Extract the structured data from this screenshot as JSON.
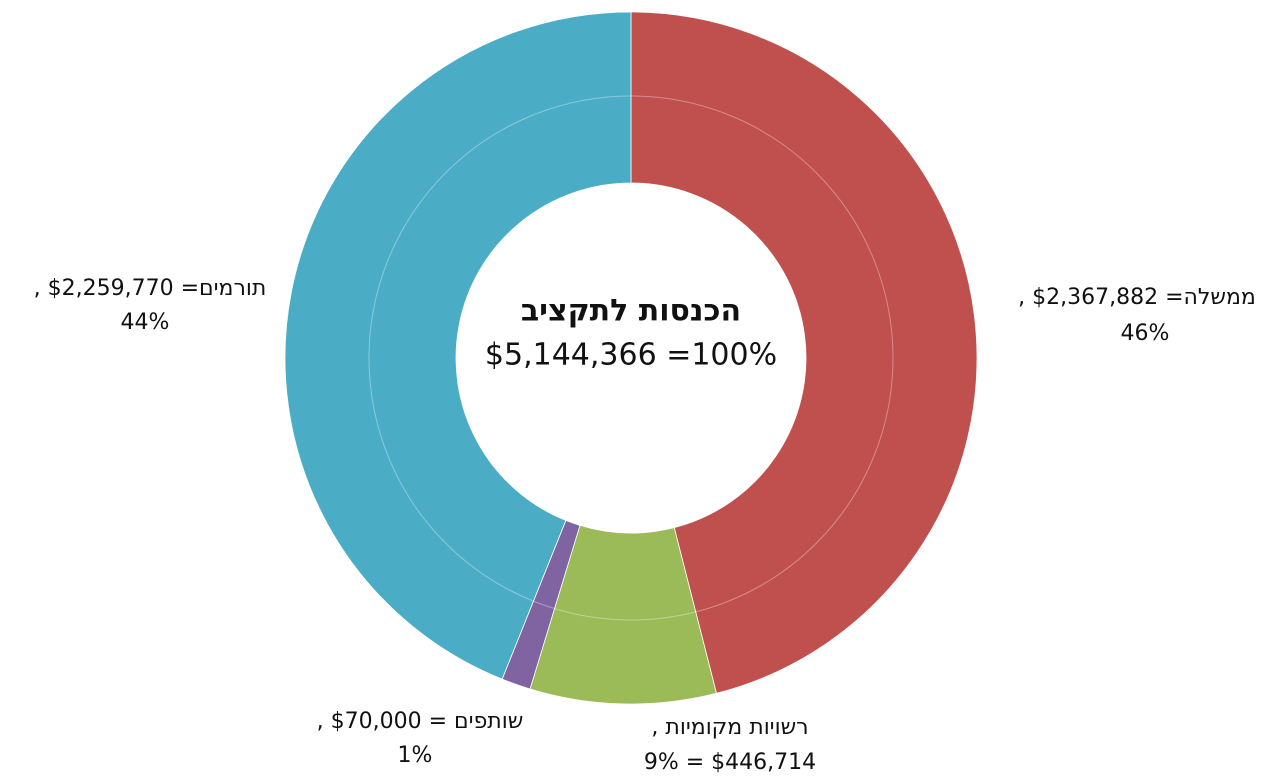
{
  "chart_data": {
    "type": "donut",
    "center_title": "הכנסות לתקציב",
    "center_label": "$5,144,366 =100%",
    "categories": [
      "ממשלה",
      "רשויות מקומיות",
      "שותפים",
      "תורמים"
    ],
    "values": [
      2367882,
      446714,
      70000,
      2259770
    ],
    "colors": [
      "#c0504d",
      "#9bbb59",
      "#8064a2",
      "#4bacc6"
    ],
    "label_lines": [
      [
        "ממשלה= $2,367,882 ,",
        "46%"
      ],
      [
        "רשויות מקומיות ,",
        "$446,714 = 9%"
      ],
      [
        "שותפים = $70,000 ,",
        "1%"
      ],
      [
        "תורמים= $2,259,770 ,",
        "44%"
      ]
    ]
  }
}
